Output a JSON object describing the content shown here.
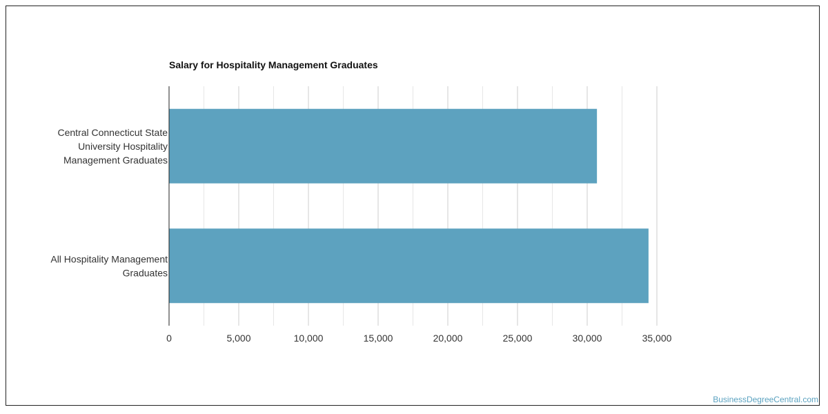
{
  "chart_data": {
    "type": "bar",
    "orientation": "horizontal",
    "title": "Salary for Hospitality Management Graduates",
    "categories": [
      [
        "Central Connecticut State",
        "University Hospitality",
        "Management Graduates"
      ],
      [
        "All Hospitality Management",
        "Graduates"
      ]
    ],
    "values": [
      30700,
      34400
    ],
    "xlim": [
      0,
      35000
    ],
    "xticks": [
      0,
      5000,
      10000,
      15000,
      20000,
      25000,
      30000,
      35000
    ],
    "xtick_labels": [
      "0",
      "5,000",
      "10,000",
      "15,000",
      "20,000",
      "25,000",
      "30,000",
      "35,000"
    ],
    "grid": true,
    "bar_color": "#5da2bf",
    "grid_color_major": "#cccccc",
    "grid_color_minor": "#e6e6e6",
    "axis_color": "#222222",
    "xlabel": "",
    "ylabel": ""
  },
  "watermark": "BusinessDegreeCentral.com"
}
